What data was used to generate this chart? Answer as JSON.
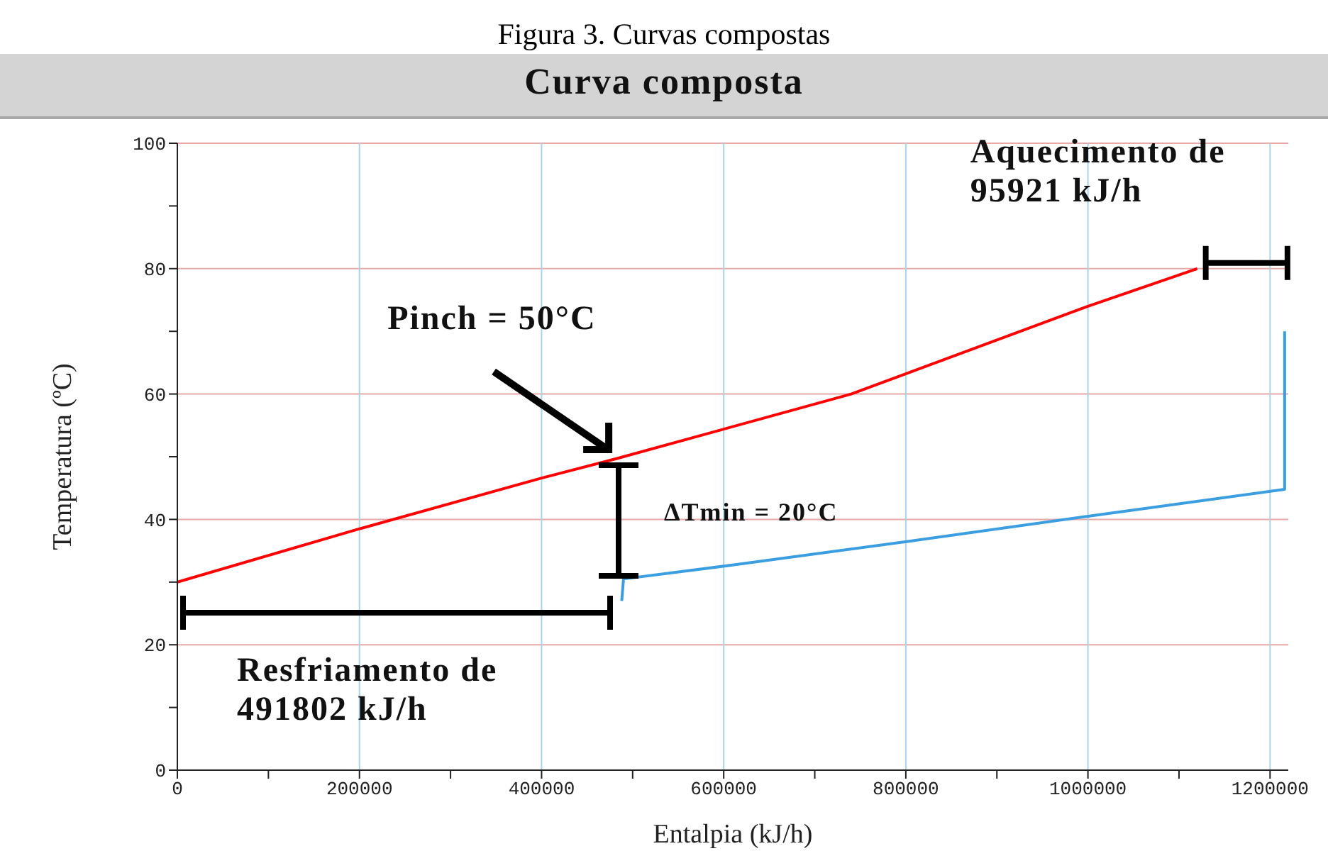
{
  "chart_data": {
    "type": "line",
    "title": "Figura 3. Curvas compostas",
    "subtitle": "Curva composta",
    "xlabel": "Entalpia (kJ/h)",
    "ylabel": "Temperatura (ºC)",
    "series": [
      {
        "color": "#ff0000",
        "x": [
          0,
          200000,
          400000,
          480000,
          740000,
          1000000,
          1120000
        ],
        "values": [
          30,
          38.5,
          46.6,
          49.6,
          60,
          74,
          80
        ]
      },
      {
        "color": "#3a9ee0",
        "x": [
          488000,
          490000,
          614000,
          798000,
          1000000,
          1216000,
          1216000
        ],
        "values": [
          27,
          30.5,
          32.8,
          36.4,
          40.5,
          44.8,
          70
        ]
      }
    ],
    "xlim": [
      0,
      1220000
    ],
    "ylim": [
      0,
      100
    ],
    "xticks": [
      0,
      {
        "value": 100000,
        "label": null
      },
      200000,
      {
        "value": 300000,
        "label": null
      },
      400000,
      {
        "value": 500000,
        "label": null
      },
      600000,
      {
        "value": 700000,
        "label": null
      },
      800000,
      {
        "value": 900000,
        "label": null
      },
      1000000,
      {
        "value": 1100000,
        "label": null
      },
      1200000
    ],
    "yticks": [
      0,
      {
        "value": 10,
        "label": null
      },
      20,
      {
        "value": 30,
        "label": null
      },
      40,
      {
        "value": 50,
        "label": null
      },
      60,
      {
        "value": 70,
        "label": null
      },
      80,
      {
        "value": 90,
        "label": null
      },
      100
    ],
    "grid": true,
    "marker": "none",
    "line_style": "solid",
    "annotations": [
      {
        "text": "Pinch = 50°C",
        "x": 480000,
        "y": 50
      },
      "ΔTmin = 20°C",
      "Resfriamento de\n491802 kJ/h",
      {
        "text": "Aquecimento de\n95921 kJ/h",
        "x": 1120000,
        "y": 80
      }
    ]
  }
}
